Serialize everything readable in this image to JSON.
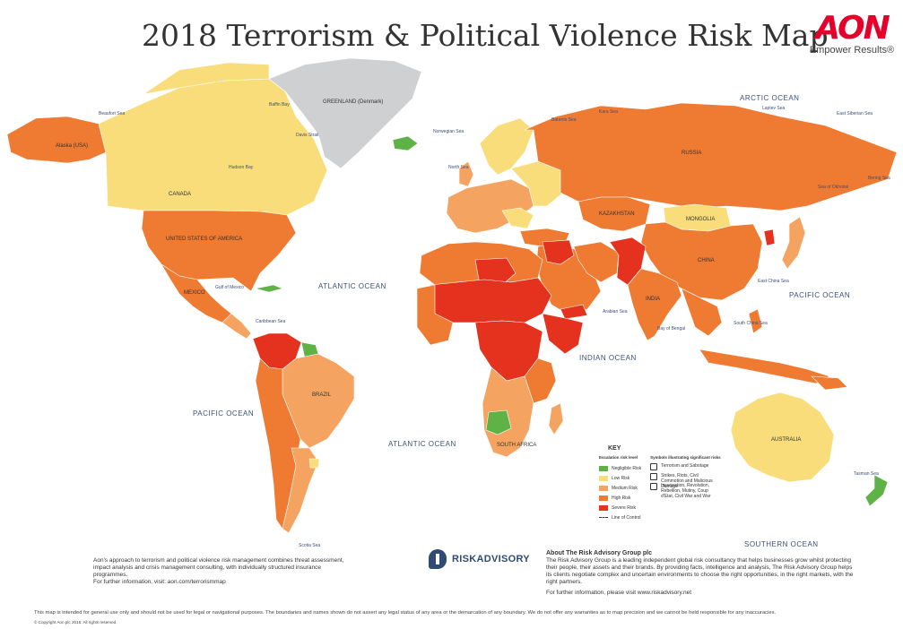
{
  "header": {
    "year": "2018",
    "title": "Terrorism & Political Violence Risk Map"
  },
  "logo": {
    "brand": "AON",
    "tagline": "Empower Results®"
  },
  "colors": {
    "negligible": "#5fb246",
    "low": "#f9dd7a",
    "medium": "#f4a460",
    "high": "#ef7a32",
    "severe": "#e4321e",
    "greenland": "#cfd0d2",
    "ocean": "#ffffff"
  },
  "oceans": [
    {
      "label": "ATLANTIC OCEAN",
      "id": "north-atlantic"
    },
    {
      "label": "PACIFIC OCEAN",
      "id": "east-pacific"
    },
    {
      "label": "ATLANTIC OCEAN",
      "id": "south-atlantic"
    },
    {
      "label": "INDIAN OCEAN",
      "id": "indian"
    },
    {
      "label": "PACIFIC OCEAN",
      "id": "west-pacific"
    },
    {
      "label": "ARCTIC OCEAN",
      "id": "arctic"
    },
    {
      "label": "SOUTHERN OCEAN",
      "id": "southern"
    }
  ],
  "seas": {
    "beaufort": "Beaufort Sea",
    "baffin": "Baffin Bay",
    "davis": "Davis Strait",
    "hudson": "Hudson Bay",
    "norwegian": "Norwegian Sea",
    "barents": "Barents Sea",
    "kara": "Kara Sea",
    "laptev": "Laptev Sea",
    "east_siberian": "East Siberian Sea",
    "okhotsk": "Sea of Okhotsk",
    "bering": "Bering Sea",
    "north": "North Sea",
    "gulf_mexico": "Gulf of Mexico",
    "caribbean": "Caribbean Sea",
    "arabian": "Arabian Sea",
    "bengal": "Bay of Bengal",
    "east_china": "East China Sea",
    "south_china": "South China Sea",
    "tasman": "Tasman Sea",
    "scotia": "Scotia Sea"
  },
  "countries": {
    "alaska": "Alaska (USA)",
    "canada": "CANADA",
    "usa": "UNITED STATES OF AMERICA",
    "mexico": "MEXICO",
    "greenland": "GREENLAND (Denmark)",
    "brazil": "BRAZIL",
    "russia": "RUSSIA",
    "kazakhstan": "KAZAKHSTAN",
    "mongolia": "MONGOLIA",
    "china": "CHINA",
    "india": "INDIA",
    "australia": "AUSTRALIA",
    "south_africa": "SOUTH AFRICA"
  },
  "key": {
    "title": "KEY",
    "left_heading": "Escalation risk level",
    "levels": [
      "Negligible Risk",
      "Low Risk",
      "Medium Risk",
      "High Risk",
      "Severe Risk"
    ],
    "line_label": "Line of Control",
    "right_heading": "Symbols illustrating significant risks",
    "symbols": [
      "Terrorism and Sabotage",
      "Strikes, Riots, Civil Commotion and Malicious Damage",
      "Insurrection, Revolution, Rebellion, Mutiny, Coup d'Etat, Civil War and War"
    ]
  },
  "footer": {
    "approach": "Aon's approach to terrorism and political violence risk management combines threat assessment, impact analysis and crisis management consulting, with individually structured insurance programmes.",
    "approach_link": "For further information, visit: aon.com/terrorismmap",
    "ra_logo": "RISKADVISORY",
    "about_title": "About The Risk Advisory Group plc",
    "about_body": "The Risk Advisory Group is a leading independent global risk consultancy that helps businesses grow whilst protecting their people, their assets and their brands.  By providing facts, intelligence and analysis, The Risk Advisory Group helps its clients negotiate complex and uncertain environments to choose the right opportunities, in the right markets, with the right partners.",
    "about_visit": "For further information, please visit www.riskadvisory.net",
    "disclaimer": "This map is intended for general use only and should not be used for legal or navigational purposes. The boundaries and names shown do not assert any legal status of any area or the demarcation of any boundary. We do not offer any warranties as to map precision and we cannot be held responsible for any inaccuracies.",
    "copyright": "© Copyright Aon plc 2018. All rights reserved."
  }
}
